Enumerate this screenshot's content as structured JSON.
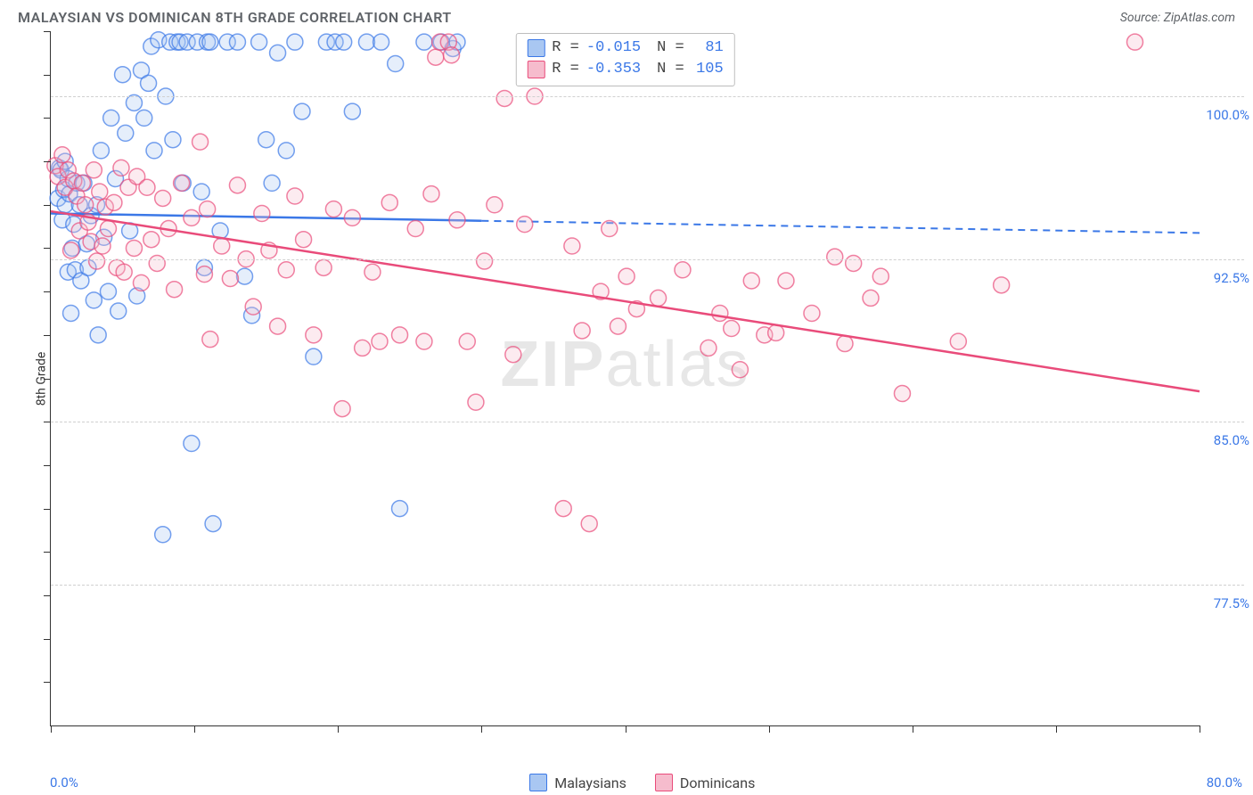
{
  "header": {
    "title": "MALAYSIAN VS DOMINICAN 8TH GRADE CORRELATION CHART",
    "source_prefix": "Source: ",
    "source_name": "ZipAtlas.com"
  },
  "watermark": {
    "bold": "ZIP",
    "light": "atlas"
  },
  "chart": {
    "type": "scatter",
    "ylabel": "8th Grade",
    "background_color": "#ffffff",
    "grid_color": "#d0d0d0",
    "axis_color": "#333333",
    "label_color": "#3b78e7",
    "xlim": [
      0,
      80
    ],
    "ylim": [
      71,
      103
    ],
    "x_ticks": [
      0,
      10,
      20,
      30,
      40,
      50,
      60,
      70,
      80
    ],
    "x_tick_labels": {
      "0": "0.0%",
      "80": "80.0%"
    },
    "y_gridlines": [
      77.5,
      85.0,
      92.5,
      100.0
    ],
    "y_tick_labels": [
      "77.5%",
      "85.0%",
      "92.5%",
      "100.0%"
    ],
    "y_minor_ticks": [
      73,
      75,
      77,
      79,
      81,
      83,
      85,
      87,
      89,
      91,
      93,
      95,
      97,
      99,
      101,
      103
    ],
    "marker_radius": 9,
    "marker_stroke_width": 1.5,
    "marker_fill_opacity": 0.3,
    "series": [
      {
        "name": "Malaysians",
        "color_stroke": "#3b78e7",
        "color_fill": "#a9c7f2",
        "R": "-0.015",
        "N": "81",
        "trend": {
          "solid_end_x": 30,
          "y_at_0": 94.6,
          "y_at_80": 93.7
        },
        "points": [
          [
            0.5,
            95.3
          ],
          [
            0.6,
            96.7
          ],
          [
            0.7,
            96.6
          ],
          [
            0.8,
            94.3
          ],
          [
            0.9,
            95.7
          ],
          [
            1.0,
            97.0
          ],
          [
            1.0,
            95.0
          ],
          [
            1.2,
            96.2
          ],
          [
            1.2,
            91.9
          ],
          [
            1.3,
            95.5
          ],
          [
            1.4,
            90.0
          ],
          [
            1.5,
            93.0
          ],
          [
            1.6,
            94.1
          ],
          [
            1.7,
            92.0
          ],
          [
            1.8,
            96.0
          ],
          [
            2.0,
            95.0
          ],
          [
            2.1,
            91.5
          ],
          [
            2.3,
            96.0
          ],
          [
            2.5,
            93.2
          ],
          [
            2.6,
            92.1
          ],
          [
            2.8,
            94.5
          ],
          [
            3.0,
            90.6
          ],
          [
            3.2,
            95.0
          ],
          [
            3.3,
            89.0
          ],
          [
            3.5,
            97.5
          ],
          [
            3.7,
            93.5
          ],
          [
            4.0,
            91.0
          ],
          [
            4.2,
            99.0
          ],
          [
            4.5,
            96.2
          ],
          [
            4.7,
            90.1
          ],
          [
            5.0,
            101.0
          ],
          [
            5.2,
            98.3
          ],
          [
            5.5,
            93.8
          ],
          [
            5.8,
            99.7
          ],
          [
            6.0,
            90.8
          ],
          [
            6.3,
            101.2
          ],
          [
            6.5,
            99.0
          ],
          [
            6.8,
            100.6
          ],
          [
            7.0,
            102.3
          ],
          [
            7.2,
            97.5
          ],
          [
            7.5,
            102.6
          ],
          [
            7.8,
            79.8
          ],
          [
            8.0,
            100.0
          ],
          [
            8.3,
            102.5
          ],
          [
            8.5,
            98.0
          ],
          [
            8.8,
            102.5
          ],
          [
            9.0,
            102.5
          ],
          [
            9.2,
            96.0
          ],
          [
            9.5,
            102.5
          ],
          [
            9.8,
            84.0
          ],
          [
            10.2,
            102.5
          ],
          [
            10.5,
            95.6
          ],
          [
            10.7,
            92.1
          ],
          [
            10.9,
            102.5
          ],
          [
            11.1,
            102.5
          ],
          [
            11.3,
            80.3
          ],
          [
            11.8,
            93.8
          ],
          [
            12.3,
            102.5
          ],
          [
            13.0,
            102.5
          ],
          [
            13.5,
            91.7
          ],
          [
            14.0,
            89.9
          ],
          [
            14.5,
            102.5
          ],
          [
            15.0,
            98.0
          ],
          [
            15.4,
            96.0
          ],
          [
            15.8,
            102.0
          ],
          [
            16.4,
            97.5
          ],
          [
            17.0,
            102.5
          ],
          [
            17.5,
            99.3
          ],
          [
            18.3,
            88.0
          ],
          [
            19.2,
            102.5
          ],
          [
            19.8,
            102.5
          ],
          [
            20.4,
            102.5
          ],
          [
            21.0,
            99.3
          ],
          [
            22.0,
            102.5
          ],
          [
            23.0,
            102.5
          ],
          [
            24.0,
            101.5
          ],
          [
            24.3,
            81.0
          ],
          [
            26.0,
            102.5
          ],
          [
            27.2,
            102.5
          ],
          [
            28.0,
            102.2
          ],
          [
            28.3,
            102.5
          ]
        ]
      },
      {
        "name": "Dominicans",
        "color_stroke": "#e94b7a",
        "color_fill": "#f6bccd",
        "R": "-0.353",
        "N": "105",
        "trend": {
          "solid_end_x": 80,
          "y_at_0": 94.7,
          "y_at_80": 86.4
        },
        "points": [
          [
            0.3,
            96.8
          ],
          [
            0.5,
            96.3
          ],
          [
            0.8,
            97.3
          ],
          [
            1.0,
            95.8
          ],
          [
            1.2,
            96.6
          ],
          [
            1.4,
            92.9
          ],
          [
            1.6,
            96.1
          ],
          [
            1.8,
            95.4
          ],
          [
            2.0,
            93.8
          ],
          [
            2.2,
            96.0
          ],
          [
            2.4,
            95.0
          ],
          [
            2.6,
            94.2
          ],
          [
            2.8,
            93.3
          ],
          [
            3.0,
            96.6
          ],
          [
            3.2,
            92.4
          ],
          [
            3.4,
            95.6
          ],
          [
            3.6,
            93.1
          ],
          [
            3.8,
            94.9
          ],
          [
            4.0,
            93.9
          ],
          [
            4.4,
            95.1
          ],
          [
            4.6,
            92.1
          ],
          [
            4.9,
            96.7
          ],
          [
            5.1,
            91.9
          ],
          [
            5.4,
            95.8
          ],
          [
            5.8,
            93.0
          ],
          [
            6.0,
            96.3
          ],
          [
            6.3,
            91.4
          ],
          [
            6.7,
            95.8
          ],
          [
            7.0,
            93.4
          ],
          [
            7.4,
            92.3
          ],
          [
            7.8,
            95.3
          ],
          [
            8.2,
            93.9
          ],
          [
            8.6,
            91.1
          ],
          [
            9.1,
            96.0
          ],
          [
            9.8,
            94.4
          ],
          [
            10.4,
            97.9
          ],
          [
            10.7,
            91.8
          ],
          [
            10.9,
            94.8
          ],
          [
            11.1,
            88.8
          ],
          [
            11.9,
            93.1
          ],
          [
            12.5,
            91.6
          ],
          [
            13.0,
            95.9
          ],
          [
            13.6,
            92.5
          ],
          [
            14.1,
            90.3
          ],
          [
            14.7,
            94.6
          ],
          [
            15.2,
            92.9
          ],
          [
            15.8,
            89.4
          ],
          [
            16.4,
            92.0
          ],
          [
            17.0,
            95.4
          ],
          [
            17.6,
            93.4
          ],
          [
            18.3,
            89.0
          ],
          [
            19.0,
            92.1
          ],
          [
            19.7,
            94.8
          ],
          [
            20.3,
            85.6
          ],
          [
            21.0,
            94.4
          ],
          [
            21.7,
            88.4
          ],
          [
            22.4,
            91.9
          ],
          [
            22.9,
            88.7
          ],
          [
            23.6,
            95.1
          ],
          [
            24.3,
            89.0
          ],
          [
            25.4,
            93.9
          ],
          [
            26.0,
            88.7
          ],
          [
            26.5,
            95.5
          ],
          [
            26.8,
            101.8
          ],
          [
            27.1,
            102.5
          ],
          [
            27.7,
            102.5
          ],
          [
            27.9,
            101.9
          ],
          [
            28.3,
            94.3
          ],
          [
            29.0,
            88.7
          ],
          [
            29.6,
            85.9
          ],
          [
            30.2,
            92.4
          ],
          [
            30.9,
            95.0
          ],
          [
            31.6,
            99.9
          ],
          [
            32.2,
            88.1
          ],
          [
            33.0,
            94.1
          ],
          [
            33.7,
            100.0
          ],
          [
            35.7,
            81.0
          ],
          [
            36.3,
            93.1
          ],
          [
            37.0,
            89.2
          ],
          [
            37.5,
            80.3
          ],
          [
            38.3,
            91.0
          ],
          [
            38.9,
            93.9
          ],
          [
            39.5,
            89.4
          ],
          [
            40.1,
            91.7
          ],
          [
            40.8,
            90.2
          ],
          [
            42.3,
            90.7
          ],
          [
            44.0,
            92.0
          ],
          [
            45.8,
            88.4
          ],
          [
            46.6,
            90.0
          ],
          [
            47.4,
            89.3
          ],
          [
            48.0,
            87.4
          ],
          [
            48.8,
            91.5
          ],
          [
            49.7,
            89.0
          ],
          [
            50.5,
            89.1
          ],
          [
            51.2,
            91.5
          ],
          [
            53.0,
            90.0
          ],
          [
            54.6,
            92.6
          ],
          [
            55.3,
            88.6
          ],
          [
            55.9,
            92.3
          ],
          [
            57.1,
            90.7
          ],
          [
            57.8,
            91.7
          ],
          [
            59.3,
            86.3
          ],
          [
            63.2,
            88.7
          ],
          [
            66.2,
            91.3
          ],
          [
            75.5,
            102.5
          ]
        ]
      }
    ],
    "stats_labels": {
      "R": "R =",
      "N": "N ="
    },
    "legend_labels": {
      "malaysians": "Malaysians",
      "dominicans": "Dominicans"
    }
  }
}
